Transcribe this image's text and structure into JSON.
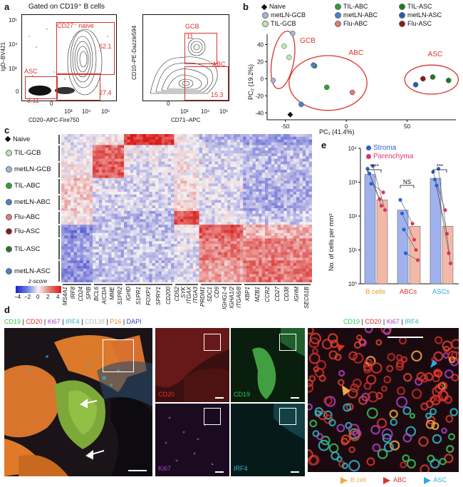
{
  "panels": {
    "a": {
      "label": "a",
      "title": "Gated on CD19⁺ B cells",
      "plot1": {
        "ylabel": "IgD–BV421",
        "xlabel": "CD20–APC-Fire750",
        "gates": [
          {
            "name": "CD27⁻ naive",
            "pct": "62.1"
          },
          {
            "name": "ASC",
            "pct": "3.11"
          },
          {
            "name": "",
            "pct": "27.4"
          }
        ],
        "ticks_x": [
          "0",
          "10³",
          "10⁴",
          "10⁵"
        ],
        "ticks_y": [
          "10⁵",
          "10⁴",
          "10³",
          "0"
        ]
      },
      "plot2": {
        "ylabel": "CD10–PE-Dazzle594",
        "xlabel": "CD71–APC",
        "gates": [
          {
            "name": "GCB",
            "pct": "11"
          },
          {
            "name": "ABC",
            "pct": "15.3"
          }
        ],
        "ticks_x": [
          "0",
          "10³",
          "10⁴",
          "10⁵"
        ]
      }
    },
    "b": {
      "label": "b",
      "legend": [
        {
          "name": "Naive",
          "color": "#111111",
          "shape": "diamond"
        },
        {
          "name": "TIL-ABC",
          "color": "#2ea02e"
        },
        {
          "name": "TIL-ASC",
          "color": "#1f7a1f"
        },
        {
          "name": "metLN-GCB",
          "color": "#9fb7dd"
        },
        {
          "name": "metLN-ABC",
          "color": "#4a7fd1"
        },
        {
          "name": "metLN-ASC",
          "color": "#2a5bb5"
        },
        {
          "name": "TIL-GCB",
          "color": "#bfe7b0"
        },
        {
          "name": "Flu-ABC",
          "color": "#e07c76"
        },
        {
          "name": "Flu-ASC",
          "color": "#8b1a1a"
        }
      ],
      "xlabel": "PC₁ (41.4%)",
      "ylabel": "PC₂ (19.2%)",
      "xticks": [
        "-50",
        "0",
        "50"
      ],
      "yticks": [
        "40",
        "20",
        "0",
        "-20",
        "-40"
      ],
      "clusters": [
        "GCB",
        "ABC",
        "ASC"
      ]
    },
    "c": {
      "label": "c",
      "rows": [
        {
          "name": "Naive",
          "color": "#111111",
          "shape": "diamond"
        },
        {
          "name": "TIL-GCB",
          "color": "#bfe7b0"
        },
        {
          "name": "metLN-GCB",
          "color": "#9fb7dd"
        },
        {
          "name": "TIL-ABC",
          "color": "#2ea02e"
        },
        {
          "name": "metLN-ABC",
          "color": "#4a7fd1"
        },
        {
          "name": "Flu-ABC",
          "color": "#e07c76"
        },
        {
          "name": "Flu-ASC",
          "color": "#8b1a1a"
        },
        {
          "name": "TIL-ASC",
          "color": "#1f7a1f"
        },
        {
          "name": "metLN-ASC",
          "color": "#4a7fd1"
        }
      ],
      "genes": [
        "MS4A1",
        "IRF8",
        "CD24",
        "SPIB",
        "BCL6",
        "AICDA",
        "MME",
        "S1PR2",
        "IGHD",
        "S1PR1",
        "FOXP1",
        "SPRY1",
        "CD200",
        "CD52",
        "SYK",
        "ITGAX",
        "ITGA3",
        "PRDM1",
        "SDC1",
        "CD9",
        "IGHG1-4",
        "IGHA1/2",
        "ITGA6/8",
        "XBP1",
        "MZB1",
        "CCR2",
        "CD27",
        "CD38",
        "IGHM",
        "SEC61B"
      ],
      "scale_title": "z-score",
      "scale_ticks": [
        "−4",
        "−2",
        "0",
        "2",
        "4"
      ]
    },
    "e": {
      "label": "e",
      "legend": [
        {
          "name": "Stroma",
          "color": "#2f5fd0"
        },
        {
          "name": "Parenchyma",
          "color": "#e0336a"
        }
      ],
      "ylabel": "No. of cells per mm²",
      "yticks": [
        "10⁴",
        "10³",
        "10²",
        "10¹",
        "10⁰"
      ],
      "groups": [
        "B cells",
        "ABCs",
        "ASCs"
      ],
      "signif": [
        "****",
        "NS",
        "***"
      ]
    },
    "d": {
      "label": "d",
      "main_channels": [
        {
          "text": "CD19",
          "color": "#35c455"
        },
        {
          "text": " | ",
          "color": "#111"
        },
        {
          "text": "CD20",
          "color": "#e0302a"
        },
        {
          "text": " | ",
          "color": "#111"
        },
        {
          "text": "Ki67",
          "color": "#b040c0"
        },
        {
          "text": " | ",
          "color": "#111"
        },
        {
          "text": "IRF4",
          "color": "#31b8c8"
        },
        {
          "text": " | ",
          "color": "#111"
        },
        {
          "text": "CD138",
          "color": "#bdbdbd"
        },
        {
          "text": " | ",
          "color": "#111"
        },
        {
          "text": "P16",
          "color": "#f08a30"
        },
        {
          "text": " | ",
          "color": "#111"
        },
        {
          "text": "DAPI",
          "color": "#3040b0"
        }
      ],
      "small_labels": [
        "CD20",
        "CD19",
        "Ki67",
        "IRF4"
      ],
      "right_channels": [
        {
          "text": "CD19",
          "color": "#35c455"
        },
        {
          "text": " | ",
          "color": "#111"
        },
        {
          "text": "CD20",
          "color": "#e0302a"
        },
        {
          "text": " | ",
          "color": "#111"
        },
        {
          "text": "Ki67",
          "color": "#b040c0"
        },
        {
          "text": " | ",
          "color": "#111"
        },
        {
          "text": "IRF4",
          "color": "#31b8c8"
        }
      ],
      "arrow_legend": [
        {
          "name": "B cell",
          "color": "#f2a94a"
        },
        {
          "name": "ABC",
          "color": "#e0302a"
        },
        {
          "name": "ASC",
          "color": "#31a8e0"
        }
      ]
    }
  },
  "chart_data": [
    {
      "type": "scatter",
      "title": "",
      "xlabel": "PC₁ (41.4%)",
      "ylabel": "PC₂ (19.2%)",
      "xlim": [
        -65,
        90
      ],
      "ylim": [
        -48,
        52
      ],
      "series": [
        {
          "name": "Naive",
          "points": [
            [
              -46,
              -42
            ]
          ]
        },
        {
          "name": "metLN-GCB",
          "points": [
            [
              -60,
              -2
            ]
          ]
        },
        {
          "name": "TIL-GCB",
          "points": [
            [
              -51,
              38
            ],
            [
              -47,
              25
            ]
          ]
        },
        {
          "name": "metLN-GCB",
          "points": [
            [
              -44,
              53
            ]
          ]
        },
        {
          "name": "TIL-ABC",
          "points": [
            [
              -26,
              15
            ],
            [
              -16,
              -10
            ]
          ]
        },
        {
          "name": "metLN-ABC",
          "points": [
            [
              -27,
              16
            ],
            [
              -37,
              -30
            ]
          ]
        },
        {
          "name": "Flu-ABC",
          "points": [
            [
              5,
              -16
            ]
          ]
        },
        {
          "name": "metLN-ASC",
          "points": [
            [
              57,
              -7
            ]
          ]
        },
        {
          "name": "Flu-ASC",
          "points": [
            [
              63,
              0
            ]
          ]
        },
        {
          "name": "TIL-ASC",
          "points": [
            [
              71,
              2
            ],
            [
              84,
              -2
            ]
          ]
        }
      ]
    },
    {
      "type": "bar",
      "title": "",
      "ylabel": "No. of cells per mm²",
      "yscale": "log",
      "ylim": [
        1,
        10000
      ],
      "categories": [
        "B cells",
        "ABCs",
        "ASCs"
      ],
      "series": [
        {
          "name": "Stroma",
          "values": [
            1700,
            150,
            1300
          ]
        },
        {
          "name": "Parenchyma",
          "values": [
            300,
            50,
            50
          ]
        }
      ],
      "points": {
        "Stroma": [
          [
            2500,
            1800,
            900,
            3000
          ],
          [
            300,
            120,
            40,
            8
          ],
          [
            2000,
            1200,
            800,
            2500
          ]
        ],
        "Parenchyma": [
          [
            320,
            200,
            500,
            150
          ],
          [
            60,
            20,
            10,
            5
          ],
          [
            150,
            30,
            8,
            4
          ]
        ]
      }
    }
  ]
}
